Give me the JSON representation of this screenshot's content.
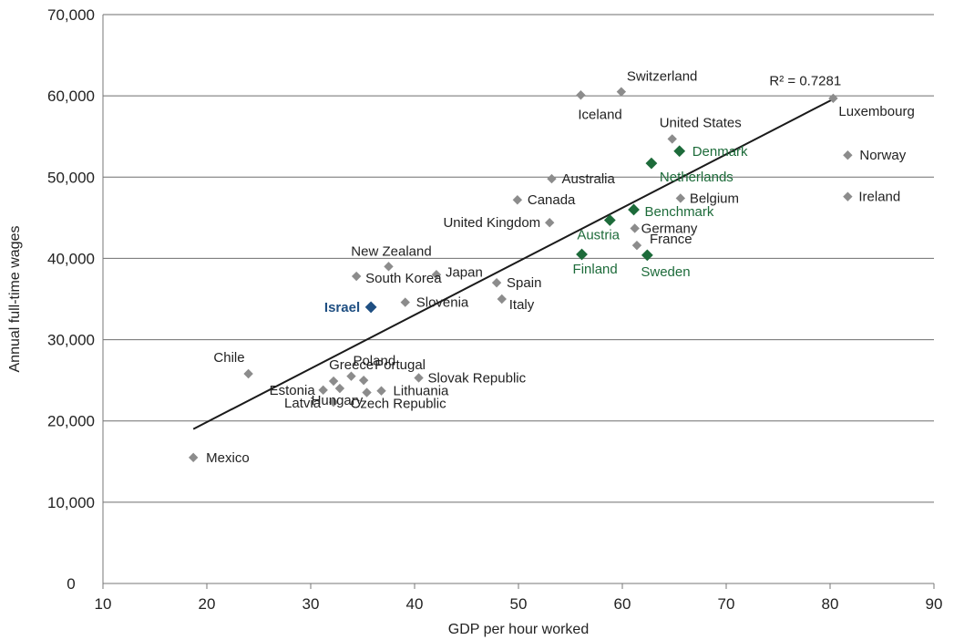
{
  "chart_data": {
    "type": "scatter",
    "xlabel": "GDP per hour worked",
    "ylabel": "Annual full-time wages",
    "xlim": [
      10,
      90
    ],
    "ylim": [
      0,
      70000
    ],
    "x_ticks": [
      10,
      20,
      30,
      40,
      50,
      60,
      70,
      80,
      90
    ],
    "y_ticks": [
      0,
      10000,
      20000,
      30000,
      40000,
      50000,
      60000,
      70000
    ],
    "x_tick_labels": [
      "10",
      "20",
      "30",
      "40",
      "50",
      "60",
      "70",
      "80",
      "90"
    ],
    "y_tick_labels": [
      "0",
      "10,000",
      "20,000",
      "30,000",
      "40,000",
      "50,000",
      "60,000",
      "70,000"
    ],
    "grid": "horizontal",
    "colors": {
      "other": "#8c8c8c",
      "highlight": "#1d6b3a",
      "israel": "#1f4f82",
      "trend": "#1a1a1a"
    },
    "points": [
      {
        "label": "Mexico",
        "x": 18.7,
        "y": 15500,
        "group": "other"
      },
      {
        "label": "Chile",
        "x": 24.0,
        "y": 25800,
        "group": "other"
      },
      {
        "label": "Estonia",
        "x": 31.2,
        "y": 23800,
        "group": "other"
      },
      {
        "label": "Latvia",
        "x": 32.2,
        "y": 22300,
        "group": "other"
      },
      {
        "label": "Greece",
        "x": 32.2,
        "y": 24900,
        "group": "other"
      },
      {
        "label": "Hungary",
        "x": 32.8,
        "y": 24000,
        "group": "other"
      },
      {
        "label": "Poland",
        "x": 33.9,
        "y": 25500,
        "group": "other"
      },
      {
        "label": "Portugal",
        "x": 35.1,
        "y": 25000,
        "group": "other"
      },
      {
        "label": "Czech Republic",
        "x": 35.4,
        "y": 23500,
        "group": "other"
      },
      {
        "label": "Lithuania",
        "x": 36.8,
        "y": 23700,
        "group": "other"
      },
      {
        "label": "Slovak Republic",
        "x": 40.4,
        "y": 25300,
        "group": "other"
      },
      {
        "label": "Israel",
        "x": 35.8,
        "y": 34000,
        "group": "israel"
      },
      {
        "label": "South Korea",
        "x": 34.4,
        "y": 37800,
        "group": "other"
      },
      {
        "label": "New Zealand",
        "x": 37.5,
        "y": 39000,
        "group": "other"
      },
      {
        "label": "Slovenia",
        "x": 39.1,
        "y": 34600,
        "group": "other"
      },
      {
        "label": "Japan",
        "x": 42.1,
        "y": 38000,
        "group": "other"
      },
      {
        "label": "Spain",
        "x": 47.9,
        "y": 37000,
        "group": "other"
      },
      {
        "label": "Italy",
        "x": 48.4,
        "y": 35000,
        "group": "other"
      },
      {
        "label": "Canada",
        "x": 49.9,
        "y": 47200,
        "group": "other"
      },
      {
        "label": "United Kingdom",
        "x": 53.0,
        "y": 44400,
        "group": "other"
      },
      {
        "label": "Australia",
        "x": 53.2,
        "y": 49800,
        "group": "other"
      },
      {
        "label": "Iceland",
        "x": 56.0,
        "y": 60100,
        "group": "other"
      },
      {
        "label": "Switzerland",
        "x": 59.9,
        "y": 60500,
        "group": "other"
      },
      {
        "label": "Finland",
        "x": 56.1,
        "y": 40500,
        "group": "highlight"
      },
      {
        "label": "Austria",
        "x": 58.8,
        "y": 44700,
        "group": "highlight"
      },
      {
        "label": "Benchmark",
        "x": 61.1,
        "y": 46000,
        "group": "highlight"
      },
      {
        "label": "Germany",
        "x": 61.2,
        "y": 43700,
        "group": "other"
      },
      {
        "label": "France",
        "x": 61.4,
        "y": 41600,
        "group": "other"
      },
      {
        "label": "Sweden",
        "x": 62.4,
        "y": 40400,
        "group": "highlight"
      },
      {
        "label": "Netherlands",
        "x": 62.8,
        "y": 51700,
        "group": "highlight"
      },
      {
        "label": "United States",
        "x": 64.8,
        "y": 54700,
        "group": "other"
      },
      {
        "label": "Denmark",
        "x": 65.5,
        "y": 53200,
        "group": "highlight"
      },
      {
        "label": "Belgium",
        "x": 65.6,
        "y": 47400,
        "group": "other"
      },
      {
        "label": "Luxembourg",
        "x": 80.3,
        "y": 59700,
        "group": "other"
      },
      {
        "label": "Norway",
        "x": 81.7,
        "y": 52700,
        "group": "other"
      },
      {
        "label": "Ireland",
        "x": 81.7,
        "y": 47600,
        "group": "other"
      }
    ],
    "trendline": {
      "x": [
        18.7,
        80.3
      ],
      "y": [
        19000,
        59600
      ]
    },
    "annotations": [
      {
        "text": "R² = 0.7281",
        "x": 80.3,
        "y": 59600
      }
    ]
  }
}
